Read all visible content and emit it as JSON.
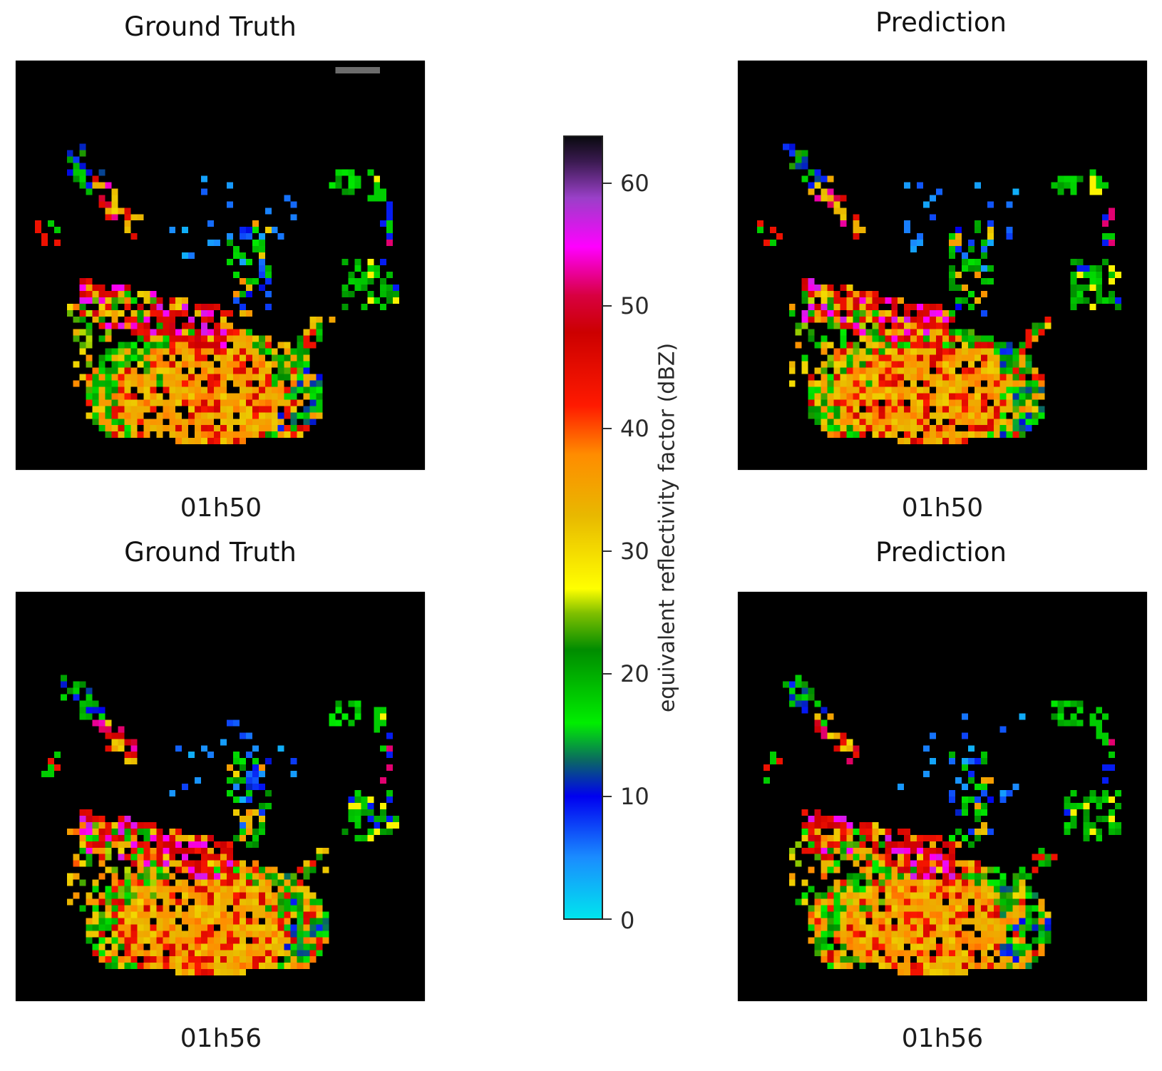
{
  "chart_data": {
    "type": "heatmap",
    "description": "Weather radar reflectivity maps: ground truth vs model prediction at two timesteps",
    "panels": [
      {
        "id": "gt_0150",
        "title": "Ground Truth",
        "time": "01h50",
        "grid": "2x2 position top-left"
      },
      {
        "id": "pred_0150",
        "title": "Prediction",
        "time": "01h50",
        "grid": "top-right"
      },
      {
        "id": "gt_0156",
        "title": "Ground Truth",
        "time": "01h56",
        "grid": "bottom-left"
      },
      {
        "id": "pred_0156",
        "title": "Prediction",
        "time": "01h56",
        "grid": "bottom-right"
      }
    ],
    "colorbar": {
      "label": "equivalent reflectivity factor (dBZ)",
      "ticks": [
        0,
        10,
        20,
        30,
        40,
        50,
        60
      ],
      "range": [
        0,
        64
      ],
      "colors": [
        {
          "v": 0,
          "c": "#00e5ee"
        },
        {
          "v": 5,
          "c": "#1a8cff"
        },
        {
          "v": 10,
          "c": "#0000f0"
        },
        {
          "v": 13,
          "c": "#0a6a60"
        },
        {
          "v": 16,
          "c": "#00ee00"
        },
        {
          "v": 22,
          "c": "#008c00"
        },
        {
          "v": 25,
          "c": "#80c000"
        },
        {
          "v": 27,
          "c": "#ffff00"
        },
        {
          "v": 33,
          "c": "#e8b800"
        },
        {
          "v": 38,
          "c": "#ff8c00"
        },
        {
          "v": 42,
          "c": "#ff1a00"
        },
        {
          "v": 48,
          "c": "#cc0000"
        },
        {
          "v": 51,
          "c": "#d80040"
        },
        {
          "v": 55,
          "c": "#ff00ff"
        },
        {
          "v": 59,
          "c": "#9a40c8"
        },
        {
          "v": 62,
          "c": "#3a1a50"
        },
        {
          "v": 64,
          "c": "#0a0a10"
        }
      ]
    },
    "background": "#000000"
  },
  "labels": {
    "gt_title_top": "Ground Truth",
    "pred_title_top": "Prediction",
    "gt_title_bottom": "Ground Truth",
    "pred_title_bottom": "Prediction",
    "time_top_left": "01h50",
    "time_top_right": "01h50",
    "time_bottom_left": "01h56",
    "time_bottom_right": "01h56",
    "tick_0": "0",
    "tick_10": "10",
    "tick_20": "20",
    "tick_30": "30",
    "tick_40": "40",
    "tick_50": "50",
    "tick_60": "60",
    "colorbar_label": "equivalent reflectivity factor (dBZ)"
  }
}
